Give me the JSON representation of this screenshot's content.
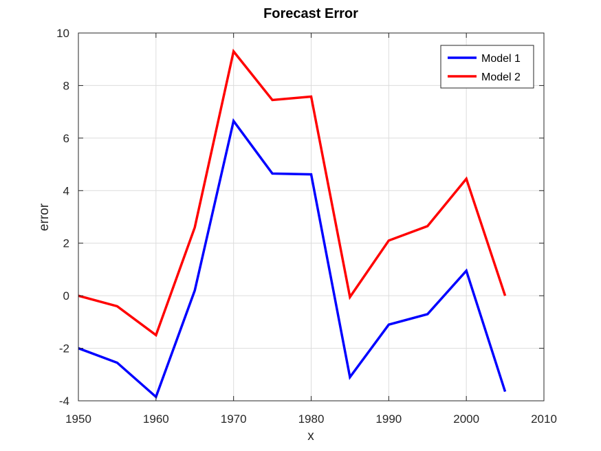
{
  "chart_data": {
    "type": "line",
    "title": "Forecast Error",
    "xlabel": "x",
    "ylabel": "error",
    "xlim": [
      1950,
      2010
    ],
    "ylim": [
      -4,
      10
    ],
    "xticks": [
      1950,
      1960,
      1970,
      1980,
      1990,
      2000,
      2010
    ],
    "yticks": [
      -4,
      -2,
      0,
      2,
      4,
      6,
      8,
      10
    ],
    "grid": true,
    "legend_position": "top-right",
    "x": [
      1950,
      1955,
      1960,
      1965,
      1970,
      1975,
      1980,
      1985,
      1990,
      1995,
      2000,
      2005
    ],
    "series": [
      {
        "name": "Model 1",
        "color": "#0000ff",
        "values": [
          -2.0,
          -2.55,
          -3.85,
          0.2,
          6.65,
          4.65,
          4.62,
          -3.1,
          -1.1,
          -0.7,
          0.95,
          -3.65
        ]
      },
      {
        "name": "Model 2",
        "color": "#ff0000",
        "values": [
          0.0,
          -0.4,
          -1.5,
          2.6,
          9.3,
          7.45,
          7.58,
          -0.05,
          2.1,
          2.65,
          4.45,
          0.0
        ]
      }
    ]
  }
}
